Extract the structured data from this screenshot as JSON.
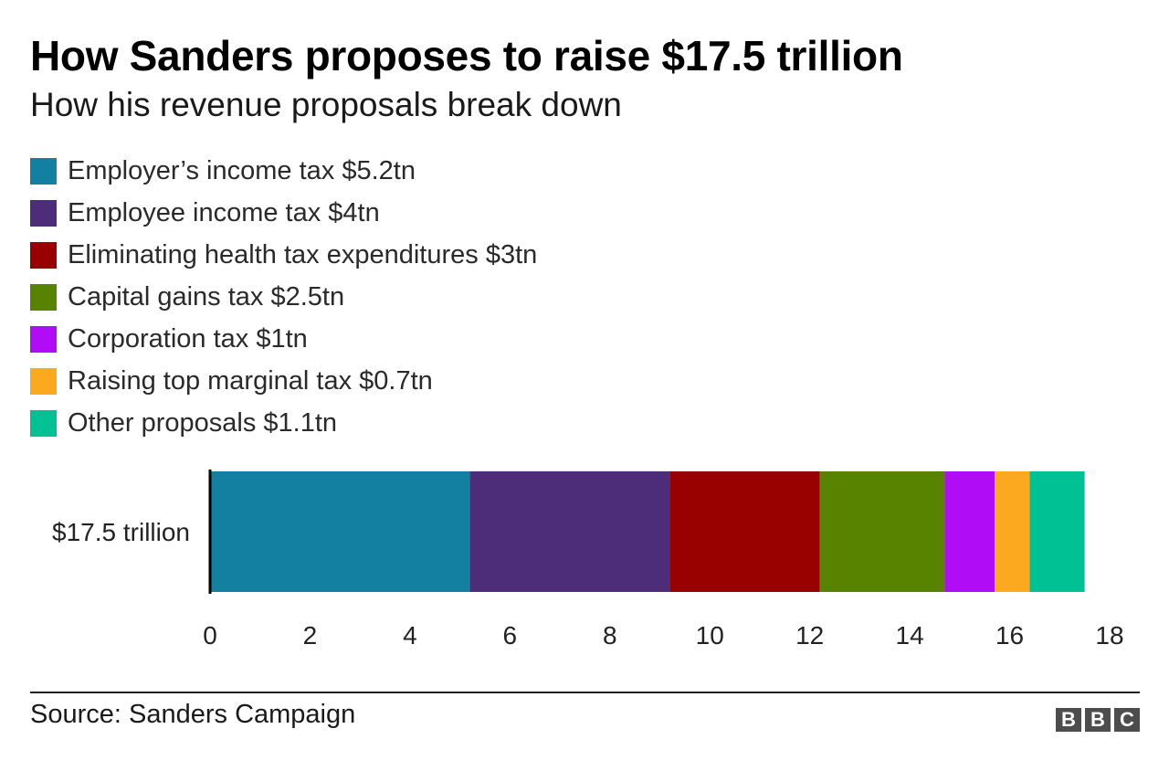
{
  "title": "How Sanders proposes to raise $17.5 trillion",
  "subtitle": "How his revenue proposals break down",
  "legend": [
    {
      "label": "Employer’s income tax $5.2tn",
      "color": "#1380a1"
    },
    {
      "label": "Employee income tax $4tn",
      "color": "#4d2d7a"
    },
    {
      "label": "Eliminating health tax expenditures $3tn",
      "color": "#990000"
    },
    {
      "label": "Capital gains tax $2.5tn",
      "color": "#588300"
    },
    {
      "label": "Corporation tax $1tn",
      "color": "#b00cf5"
    },
    {
      "label": "Raising top marginal tax $0.7tn",
      "color": "#fbaa1f"
    },
    {
      "label": "Other proposals $1.1tn",
      "color": "#00c193"
    }
  ],
  "chart_data": {
    "type": "bar",
    "orientation": "horizontal",
    "stacked": true,
    "categories": [
      "$17.5 trillion"
    ],
    "series": [
      {
        "name": "Employer’s income tax $5.2tn",
        "values": [
          5.2
        ],
        "color": "#1380a1"
      },
      {
        "name": "Employee income tax $4tn",
        "values": [
          4
        ],
        "color": "#4d2d7a"
      },
      {
        "name": "Eliminating health tax expenditures $3tn",
        "values": [
          3
        ],
        "color": "#990000"
      },
      {
        "name": "Capital gains tax $2.5tn",
        "values": [
          2.5
        ],
        "color": "#588300"
      },
      {
        "name": "Corporation tax $1tn",
        "values": [
          1
        ],
        "color": "#b00cf5"
      },
      {
        "name": "Raising top marginal tax $0.7tn",
        "values": [
          0.7
        ],
        "color": "#fbaa1f"
      },
      {
        "name": "Other proposals $1.1tn",
        "values": [
          1.1
        ],
        "color": "#00c193"
      }
    ],
    "xlim": [
      0,
      18
    ],
    "xticks": [
      "0",
      "2",
      "4",
      "6",
      "8",
      "10",
      "12",
      "14",
      "16",
      "18"
    ],
    "grid": false,
    "legend_position": "top-left"
  },
  "footer": {
    "source": "Source: Sanders Campaign",
    "logo_letters": [
      "B",
      "B",
      "C"
    ]
  }
}
